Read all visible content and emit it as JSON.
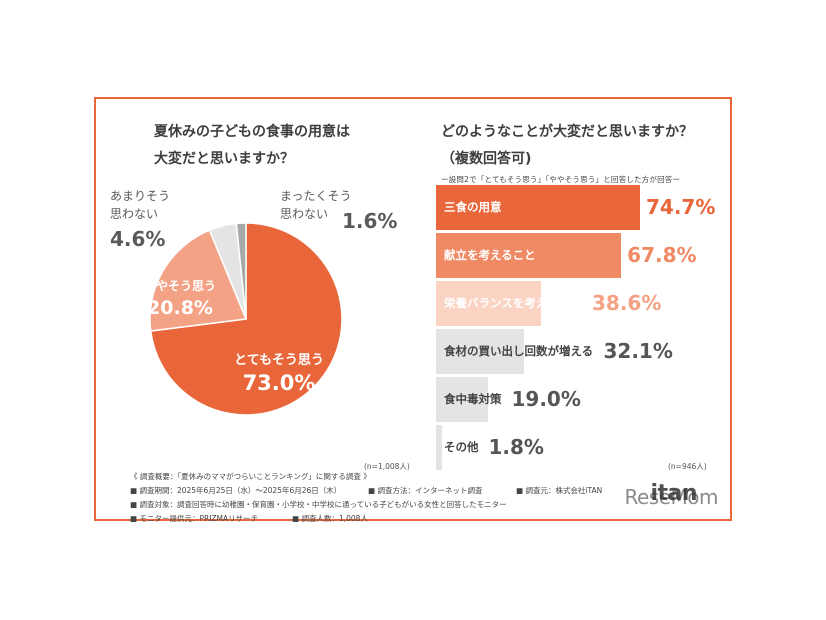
{
  "chart_data": [
    {
      "type": "pie",
      "title": "夏休みの子どもの食事の用意は大変だと思いますか？",
      "title_lines": [
        "夏休みの子どもの食事の用意は",
        "大変だと思いますか？"
      ],
      "slices": [
        {
          "label": "とてもそう思う",
          "value": 73.0,
          "display": "73.0%",
          "color": "#e8663a"
        },
        {
          "label": "ややそう思う",
          "value": 20.8,
          "display": "20.8%",
          "color": "#f4a285"
        },
        {
          "label_lines": [
            "あまりそう",
            "思わない"
          ],
          "value": 4.6,
          "display": "4.6%",
          "color": "#e4e4e4"
        },
        {
          "label_lines": [
            "まったくそう",
            "思わない"
          ],
          "value": 1.6,
          "display": "1.6%",
          "color": "#a8a8a8"
        }
      ],
      "note": "(n=1,008人)"
    },
    {
      "type": "bar",
      "title": "どのようなことが大変だと思いますか？（複数回答可)",
      "title_lines": [
        "どのようなことが大変だと思いますか？",
        "（複数回答可)"
      ],
      "subtitle": "ー設問2で「とてもそう思う」「ややそう思う」と回答した方が回答ー",
      "categories": [
        "三食の用意",
        "献立を考えること",
        "栄養バランスを考えること",
        "食材の買い出し回数が増える",
        "食中毒対策",
        "その他"
      ],
      "values": [
        74.7,
        67.8,
        38.6,
        32.1,
        19.0,
        1.8
      ],
      "display": [
        "74.7%",
        "67.8%",
        "38.6%",
        "32.1%",
        "19.0%",
        "1.8%"
      ],
      "colors": [
        "#e8663a",
        "#f08a65",
        "#fbd3c3",
        "#e4e4e4",
        "#e4e4e4",
        "#e4e4e4"
      ],
      "value_colors": [
        "#e8663a",
        "#f08a65",
        "#f4a285",
        "#555555",
        "#555555",
        "#555555"
      ],
      "xlim": [
        0,
        100
      ],
      "note": "(n=946人)"
    }
  ],
  "footer": {
    "line1": "《 調査概要：「夏休みのママがつらいことランキング」に関する調査 》",
    "period": "■ 調査期間：2025年6月25日（水）～2025年6月26日（木）",
    "method": "■ 調査方法：インターネット調査",
    "organizer": "■ 調査元：株式会社iTAN",
    "target": "■ 調査対象：調査回答時に幼稚園・保育園・小学校・中学校に通っている子どもがいる女性と回答したモニター",
    "provider": "■ モニター提供元：PRIZMAリサーチ",
    "count": "■ 調査人数：1,008人"
  },
  "logo": {
    "overlay": "ReseMom",
    "brand": "itan"
  }
}
